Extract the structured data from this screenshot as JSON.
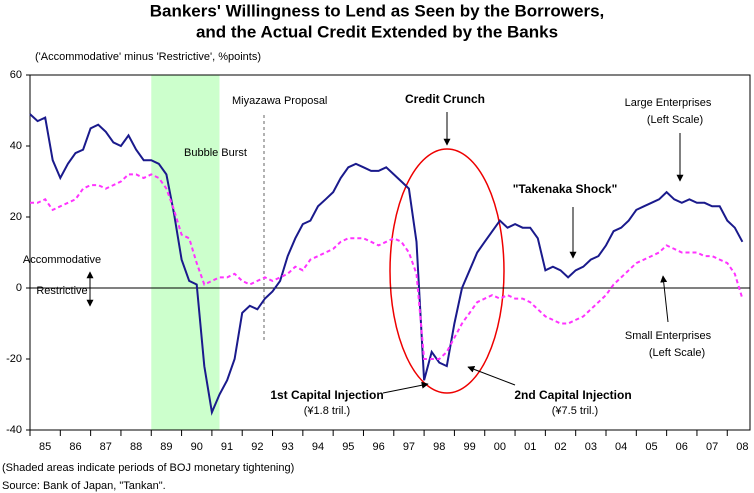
{
  "chart_data": {
    "type": "line",
    "title": [
      "Bankers' Willingness to Lend as Seen by the Borrowers,",
      "and the Actual Credit Extended by the Banks"
    ],
    "subtitle": "('Accommodative' minus 'Restrictive', %points)",
    "notes": [
      "(Shaded areas indicate periods of BOJ monetary tightening)",
      "Source: Bank of Japan, \"Tankan\"."
    ],
    "annotations": [
      "Miyazawa Proposal",
      "Bubble Burst",
      "Credit Crunch",
      "(Left Scale)",
      "\"Takenaka Shock\"",
      "Accommodative",
      "Restrictive",
      "(Left Scale)",
      "1st Capital Injection",
      "(¥1.8 tril.)",
      "2nd Capital Injection",
      "(¥7.5 tril.)"
    ],
    "shaded": [
      [
        1989.0,
        1991.25
      ]
    ],
    "xlim": [
      1985,
      2008.75
    ],
    "xticks": [
      {
        "value": 1985,
        "label": "85"
      },
      {
        "value": 1986,
        "label": "86"
      },
      {
        "value": 1987,
        "label": "87"
      },
      {
        "value": 1988,
        "label": "88"
      },
      {
        "value": 1989,
        "label": "89"
      },
      {
        "value": 1990,
        "label": "90"
      },
      {
        "value": 1991,
        "label": "91"
      },
      {
        "value": 1992,
        "label": "92"
      },
      {
        "value": 1993,
        "label": "93"
      },
      {
        "value": 1994,
        "label": "94"
      },
      {
        "value": 1995,
        "label": "95"
      },
      {
        "value": 1996,
        "label": "96"
      },
      {
        "value": 1997,
        "label": "97"
      },
      {
        "value": 1998,
        "label": "98"
      },
      {
        "value": 1999,
        "label": "99"
      },
      {
        "value": 2000,
        "label": "00"
      },
      {
        "value": 2001,
        "label": "01"
      },
      {
        "value": 2002,
        "label": "02"
      },
      {
        "value": 2003,
        "label": "03"
      },
      {
        "value": 2004,
        "label": "04"
      },
      {
        "value": 2005,
        "label": "05"
      },
      {
        "value": 2006,
        "label": "06"
      },
      {
        "value": 2007,
        "label": "07"
      },
      {
        "value": 2008,
        "label": "08"
      }
    ],
    "ylim": [
      -40,
      60
    ],
    "yticks": [
      -40,
      -20,
      0,
      20,
      40,
      60
    ],
    "x": [
      1985,
      1985.25,
      1985.5,
      1985.75,
      1986,
      1986.25,
      1986.5,
      1986.75,
      1987,
      1987.25,
      1987.5,
      1987.75,
      1988,
      1988.25,
      1988.5,
      1988.75,
      1989,
      1989.25,
      1989.5,
      1989.75,
      1990,
      1990.25,
      1990.5,
      1990.75,
      1991,
      1991.25,
      1991.5,
      1991.75,
      1992,
      1992.25,
      1992.5,
      1992.75,
      1993,
      1993.25,
      1993.5,
      1993.75,
      1994,
      1994.25,
      1994.5,
      1994.75,
      1995,
      1995.25,
      1995.5,
      1995.75,
      1996,
      1996.25,
      1996.5,
      1996.75,
      1997,
      1997.25,
      1997.5,
      1997.75,
      1998,
      1998.25,
      1998.5,
      1998.75,
      1999,
      1999.25,
      1999.5,
      1999.75,
      2000,
      2000.25,
      2000.5,
      2000.75,
      2001,
      2001.25,
      2001.5,
      2001.75,
      2002,
      2002.25,
      2002.5,
      2002.75,
      2003,
      2003.25,
      2003.5,
      2003.75,
      2004,
      2004.25,
      2004.5,
      2004.75,
      2005,
      2005.25,
      2005.5,
      2005.75,
      2006,
      2006.25,
      2006.5,
      2006.75,
      2007,
      2007.25,
      2007.5,
      2007.75,
      2008,
      2008.25,
      2008.5
    ],
    "series": [
      {
        "name": "Large Enterprises",
        "color": "#1a1a8c",
        "dashed": false,
        "values": [
          49,
          47,
          48,
          36,
          31,
          35,
          38,
          39,
          45,
          46,
          44,
          41,
          40,
          43,
          39,
          36,
          36,
          35,
          32,
          21,
          8,
          2,
          1,
          -22,
          -35,
          -30,
          -26,
          -20,
          -7,
          -5,
          -6,
          -3,
          -1,
          2,
          9,
          14,
          18,
          19,
          23,
          25,
          27,
          31,
          34,
          35,
          34,
          33,
          33,
          34,
          32,
          30,
          28,
          13,
          -26,
          -18,
          -21,
          -22,
          -10,
          0,
          5,
          10,
          13,
          16,
          19,
          17,
          18,
          17,
          17,
          14,
          5,
          6,
          5,
          3,
          5,
          6,
          8,
          9,
          12,
          16,
          17,
          19,
          22,
          23,
          24,
          25,
          27,
          25,
          24,
          25,
          24,
          24,
          23,
          23,
          19,
          17,
          13
        ]
      },
      {
        "name": "Small Enterprises",
        "color": "#ff33ff",
        "dashed": true,
        "values": [
          24,
          24,
          25,
          22,
          23,
          24,
          25,
          28,
          29,
          29,
          28,
          29,
          30,
          32,
          32,
          31,
          32,
          31,
          28,
          22,
          15,
          14,
          7,
          1,
          2,
          3,
          3,
          4,
          2,
          1,
          2,
          3,
          2,
          3,
          4,
          6,
          5,
          8,
          9,
          10,
          11,
          13,
          14,
          14,
          14,
          13,
          12,
          13,
          14,
          13,
          10,
          4,
          -20,
          -20,
          -20,
          -18,
          -14,
          -10,
          -7,
          -4,
          -3,
          -2,
          -3,
          -2,
          -3,
          -3,
          -4,
          -6,
          -8,
          -9,
          -10,
          -10,
          -9,
          -8,
          -6,
          -4,
          -2,
          1,
          3,
          5,
          7,
          8,
          9,
          10,
          12,
          11,
          10,
          10,
          10,
          9,
          9,
          8,
          7,
          4,
          -3
        ]
      }
    ]
  }
}
